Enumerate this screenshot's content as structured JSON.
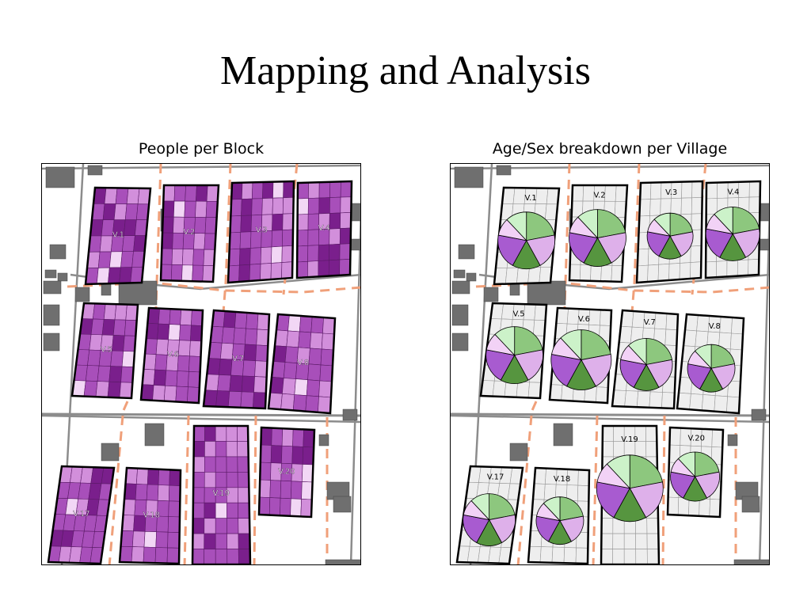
{
  "slide": {
    "title": "Mapping and Analysis"
  },
  "panels": {
    "left": {
      "caption": "People per Block"
    },
    "right": {
      "caption": "Age/Sex breakdown per Village"
    }
  },
  "villages": [
    "V.1",
    "V.2",
    "V.3",
    "V.4",
    "V.5",
    "V.6",
    "V.7",
    "V.8",
    "V.17",
    "V.18",
    "V.19",
    "V.20"
  ],
  "colors": {
    "block_fill_dark": "#7a1f8c",
    "block_fill_mid": "#a84fba",
    "block_fill_light": "#d28fdb",
    "block_fill_pale": "#f2d7f5",
    "village_grey": "#eeeeee",
    "road": "#8c8c8c",
    "boundary_dashed": "#f0a07a",
    "building": "#6f6f6f",
    "pie_green_light": "#ccf2c9",
    "pie_green": "#8dc77e",
    "pie_green_dark": "#56953f",
    "pie_purple_light": "#f2d2f6",
    "pie_purple": "#deb0ea",
    "pie_purple_dark": "#a85bd0"
  }
}
